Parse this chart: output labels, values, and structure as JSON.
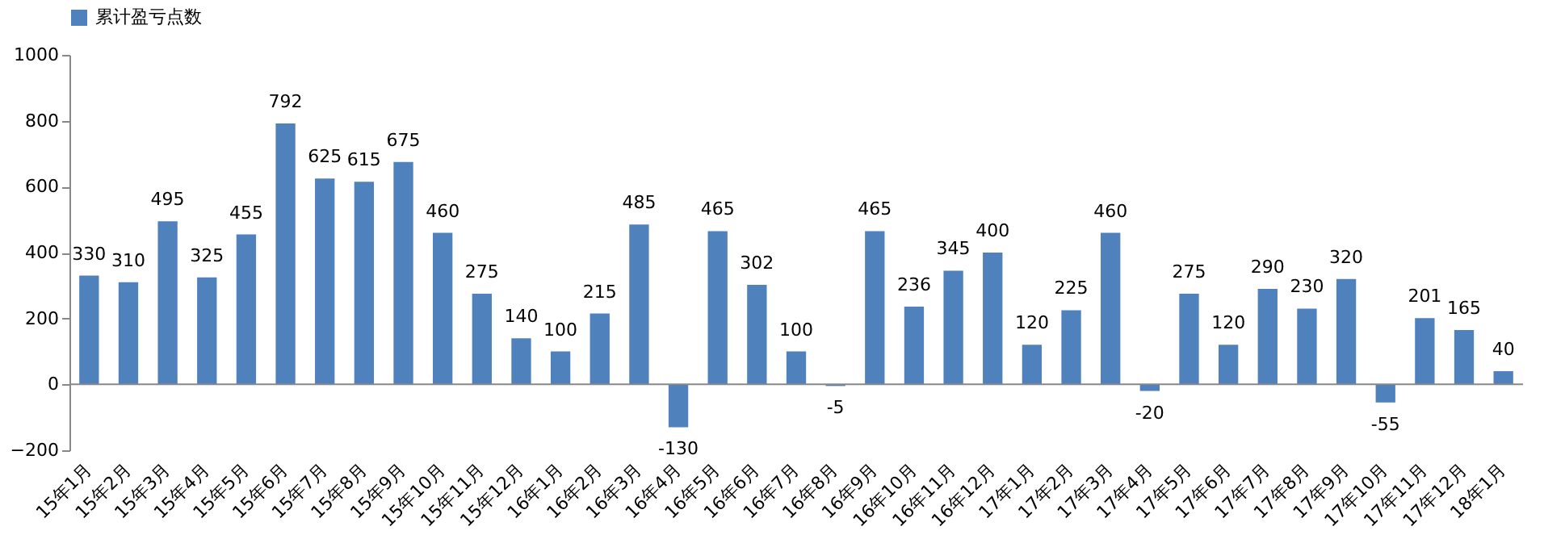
{
  "chart_data": {
    "type": "bar",
    "categories": [
      "15年1月",
      "15年2月",
      "15年3月",
      "15年4月",
      "15年5月",
      "15年6月",
      "15年7月",
      "15年8月",
      "15年9月",
      "15年10月",
      "15年11月",
      "15年12月",
      "16年1月",
      "16年2月",
      "16年3月",
      "16年4月",
      "16年5月",
      "16年6月",
      "16年7月",
      "16年8月",
      "16年9月",
      "16年10月",
      "16年11月",
      "16年12月",
      "17年1月",
      "17年2月",
      "17年3月",
      "17年4月",
      "17年5月",
      "17年6月",
      "17年7月",
      "17年8月",
      "17年9月",
      "17年10月",
      "17年11月",
      "17年12月",
      "18年1月"
    ],
    "series": [
      {
        "name": "累计盈亏点数",
        "color": "#4f81bd",
        "values": [
          330,
          310,
          495,
          325,
          455,
          792,
          625,
          615,
          675,
          460,
          275,
          140,
          100,
          215,
          485,
          -130,
          465,
          302,
          100,
          -5,
          465,
          236,
          345,
          400,
          120,
          225,
          460,
          -20,
          275,
          120,
          290,
          230,
          320,
          -55,
          201,
          165,
          40
        ]
      }
    ],
    "ylim": [
      -200,
      1000
    ],
    "yticks": [
      -200,
      0,
      200,
      400,
      600,
      800,
      1000
    ],
    "ref_lines": [
      {
        "axis": "y",
        "value": 0,
        "color": "#888888"
      }
    ],
    "data_labels": true,
    "grid": false,
    "legend": "top"
  }
}
